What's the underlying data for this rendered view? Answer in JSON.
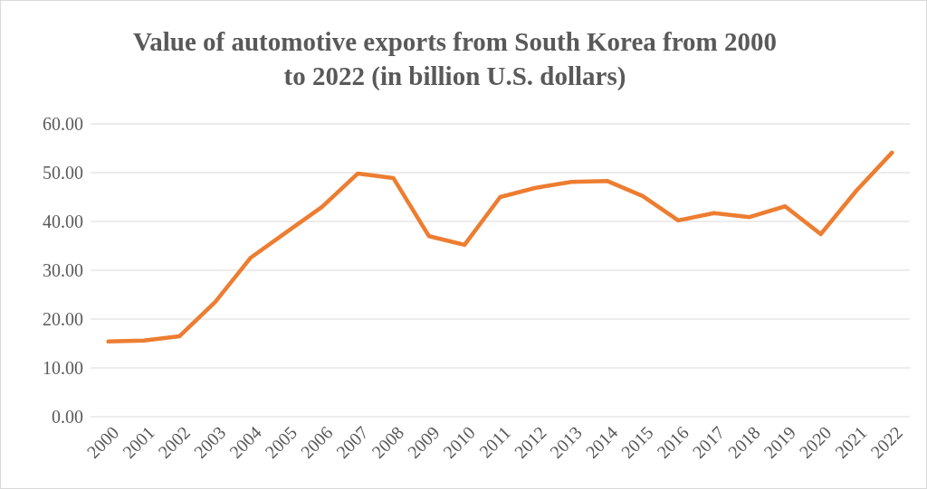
{
  "chart_data": {
    "type": "line",
    "title": "Value of automotive exports from South Korea from 2000 to 2022 (in billion U.S. dollars)",
    "categories": [
      "2000",
      "2001",
      "2002",
      "2003",
      "2004",
      "2005",
      "2006",
      "2007",
      "2008",
      "2009",
      "2010",
      "2011",
      "2012",
      "2013",
      "2014",
      "2015",
      "2016",
      "2017",
      "2018",
      "2019",
      "2020",
      "2021",
      "2022"
    ],
    "series": [
      {
        "color": "#ed7d31",
        "values": [
          15.4,
          15.6,
          16.5,
          23.5,
          32.6,
          37.8,
          43.0,
          49.8,
          48.9,
          37.0,
          35.2,
          45.0,
          46.9,
          48.1,
          48.3,
          45.2,
          40.2,
          41.7,
          40.9,
          43.1,
          37.4,
          46.3,
          54.1
        ]
      }
    ],
    "ylim": [
      0,
      60
    ],
    "yticks": [
      {
        "value": 0,
        "label": "0.00"
      },
      {
        "value": 10,
        "label": "10.00"
      },
      {
        "value": 20,
        "label": "20.00"
      },
      {
        "value": 30,
        "label": "30.00"
      },
      {
        "value": 40,
        "label": "40.00"
      },
      {
        "value": 50,
        "label": "50.00"
      },
      {
        "value": 60,
        "label": "60.00"
      }
    ],
    "grid": "y",
    "marker": "none",
    "line_style": "solid"
  }
}
